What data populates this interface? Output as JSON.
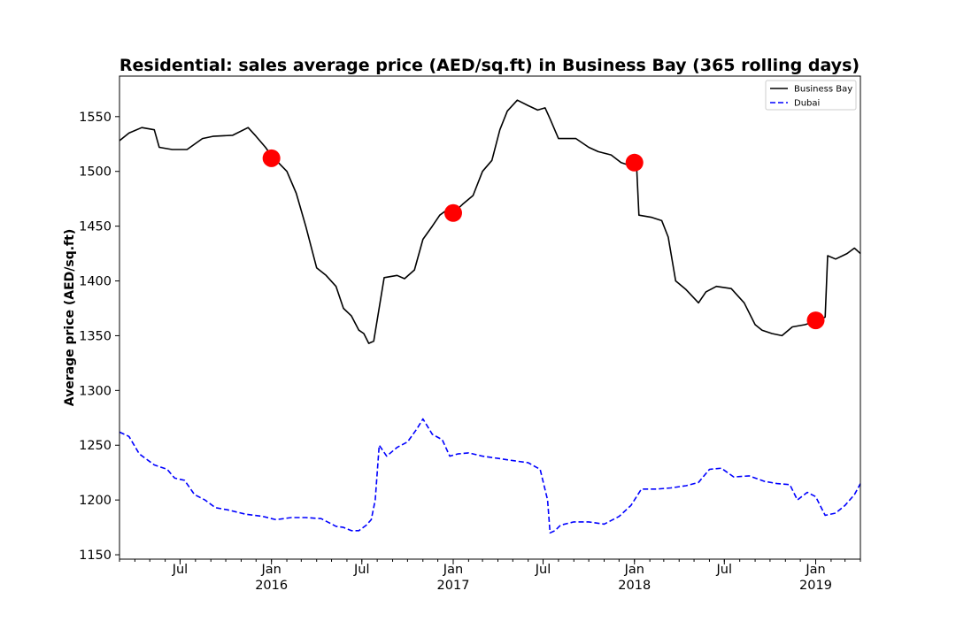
{
  "chart_data": {
    "type": "line",
    "title": "Residential: sales average price (AED/sq.ft) in Business Bay (365 rolling days)",
    "xlabel": "",
    "ylabel": "Average price (AED/sq.ft)",
    "xlim": [
      "2015-03-01",
      "2019-04-01"
    ],
    "ylim": [
      1146,
      1587
    ],
    "yticks": [
      1150,
      1200,
      1250,
      1300,
      1350,
      1400,
      1450,
      1500,
      1550
    ],
    "xticks": [
      {
        "date": "2015-07-01",
        "label": "Jul",
        "year": ""
      },
      {
        "date": "2016-01-01",
        "label": "Jan",
        "year": "2016"
      },
      {
        "date": "2016-07-01",
        "label": "Jul",
        "year": ""
      },
      {
        "date": "2017-01-01",
        "label": "Jan",
        "year": "2017"
      },
      {
        "date": "2017-07-01",
        "label": "Jul",
        "year": ""
      },
      {
        "date": "2018-01-01",
        "label": "Jan",
        "year": "2018"
      },
      {
        "date": "2018-07-01",
        "label": "Jul",
        "year": ""
      },
      {
        "date": "2019-01-01",
        "label": "Jan",
        "year": "2019"
      }
    ],
    "grid": false,
    "legend_position": "top-right",
    "series": [
      {
        "name": "Business Bay",
        "color": "#000000",
        "style": "solid",
        "x": [
          "2015-03-01",
          "2015-03-20",
          "2015-04-15",
          "2015-05-10",
          "2015-05-20",
          "2015-06-15",
          "2015-07-15",
          "2015-08-15",
          "2015-09-05",
          "2015-10-15",
          "2015-11-15",
          "2015-12-01",
          "2015-12-20",
          "2016-01-05",
          "2016-01-15",
          "2016-02-01",
          "2016-02-20",
          "2016-03-10",
          "2016-04-01",
          "2016-04-20",
          "2016-05-10",
          "2016-05-25",
          "2016-06-10",
          "2016-06-25",
          "2016-07-05",
          "2016-07-15",
          "2016-07-25",
          "2016-08-15",
          "2016-09-10",
          "2016-09-25",
          "2016-10-15",
          "2016-11-01",
          "2016-11-20",
          "2016-12-05",
          "2016-12-20",
          "2017-01-01",
          "2017-01-20",
          "2017-02-10",
          "2017-03-01",
          "2017-03-20",
          "2017-04-05",
          "2017-04-20",
          "2017-05-10",
          "2017-06-01",
          "2017-06-20",
          "2017-07-05",
          "2017-07-15",
          "2017-08-01",
          "2017-08-15",
          "2017-09-05",
          "2017-10-01",
          "2017-10-20",
          "2017-11-15",
          "2017-12-05",
          "2017-12-25",
          "2018-01-05",
          "2018-01-10",
          "2018-02-05",
          "2018-02-25",
          "2018-03-10",
          "2018-03-25",
          "2018-04-15",
          "2018-05-10",
          "2018-05-25",
          "2018-06-15",
          "2018-07-15",
          "2018-08-10",
          "2018-09-01",
          "2018-09-15",
          "2018-10-05",
          "2018-10-25",
          "2018-11-15",
          "2018-12-10",
          "2019-01-01",
          "2019-01-20",
          "2019-01-25",
          "2019-02-10",
          "2019-03-05",
          "2019-03-20",
          "2019-04-01"
        ],
        "y": [
          1528,
          1535,
          1540,
          1538,
          1522,
          1520,
          1520,
          1530,
          1532,
          1533,
          1540,
          1532,
          1522,
          1512,
          1508,
          1500,
          1480,
          1450,
          1412,
          1405,
          1395,
          1375,
          1368,
          1355,
          1352,
          1343,
          1345,
          1403,
          1405,
          1402,
          1410,
          1438,
          1450,
          1460,
          1465,
          1462,
          1470,
          1478,
          1500,
          1510,
          1538,
          1555,
          1565,
          1560,
          1556,
          1558,
          1548,
          1530,
          1530,
          1530,
          1522,
          1518,
          1515,
          1508,
          1505,
          1508,
          1460,
          1458,
          1455,
          1440,
          1400,
          1392,
          1380,
          1390,
          1395,
          1393,
          1380,
          1360,
          1355,
          1352,
          1350,
          1358,
          1360,
          1363,
          1367,
          1423,
          1420,
          1425,
          1430,
          1425
        ]
      },
      {
        "name": "Dubai",
        "color": "#0000ff",
        "style": "dashed",
        "x": [
          "2015-03-01",
          "2015-03-20",
          "2015-04-10",
          "2015-05-10",
          "2015-06-05",
          "2015-06-20",
          "2015-07-10",
          "2015-07-30",
          "2015-08-20",
          "2015-09-10",
          "2015-10-05",
          "2015-11-10",
          "2015-12-15",
          "2016-01-10",
          "2016-02-10",
          "2016-03-10",
          "2016-04-10",
          "2016-05-10",
          "2016-05-25",
          "2016-06-10",
          "2016-06-25",
          "2016-07-10",
          "2016-07-20",
          "2016-07-28",
          "2016-08-05",
          "2016-08-20",
          "2016-09-10",
          "2016-10-01",
          "2016-10-20",
          "2016-11-01",
          "2016-11-20",
          "2016-12-10",
          "2016-12-25",
          "2017-01-10",
          "2017-02-01",
          "2017-03-01",
          "2017-04-01",
          "2017-05-01",
          "2017-06-01",
          "2017-06-25",
          "2017-07-10",
          "2017-07-15",
          "2017-07-25",
          "2017-08-05",
          "2017-09-01",
          "2017-10-01",
          "2017-11-01",
          "2017-12-01",
          "2017-12-25",
          "2018-01-15",
          "2018-02-15",
          "2018-03-15",
          "2018-04-15",
          "2018-05-10",
          "2018-06-01",
          "2018-06-25",
          "2018-07-20",
          "2018-08-20",
          "2018-09-20",
          "2018-10-15",
          "2018-11-10",
          "2018-11-25",
          "2018-12-15",
          "2019-01-01",
          "2019-01-20",
          "2019-02-10",
          "2019-03-01",
          "2019-03-20",
          "2019-04-01"
        ],
        "y": [
          1262,
          1258,
          1242,
          1232,
          1228,
          1220,
          1218,
          1205,
          1200,
          1193,
          1191,
          1187,
          1185,
          1182,
          1184,
          1184,
          1183,
          1176,
          1175,
          1172,
          1172,
          1177,
          1182,
          1200,
          1250,
          1240,
          1248,
          1253,
          1265,
          1274,
          1260,
          1255,
          1240,
          1242,
          1243,
          1240,
          1238,
          1236,
          1234,
          1228,
          1200,
          1170,
          1172,
          1177,
          1180,
          1180,
          1178,
          1185,
          1195,
          1210,
          1210,
          1211,
          1213,
          1216,
          1228,
          1229,
          1221,
          1222,
          1217,
          1215,
          1214,
          1200,
          1207,
          1203,
          1186,
          1188,
          1195,
          1205,
          1215
        ]
      }
    ],
    "markers": {
      "color": "#ff0000",
      "x": [
        "2016-01-01",
        "2017-01-01",
        "2018-01-01",
        "2019-01-01"
      ],
      "y": [
        1512,
        1462,
        1508,
        1364
      ]
    }
  }
}
